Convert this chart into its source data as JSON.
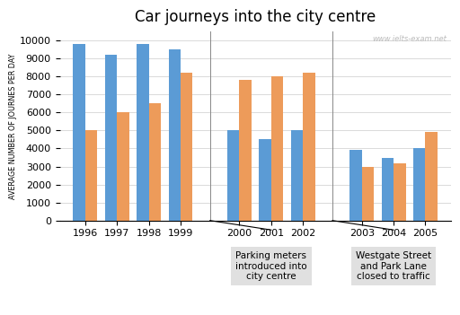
{
  "title": "Car journeys into the city centre",
  "ylabel": "AVERAGE NUMBER OF JOURNES PER DAY",
  "years": [
    1996,
    1997,
    1998,
    1999,
    2000,
    2001,
    2002,
    2003,
    2004,
    2005
  ],
  "residents": [
    9800,
    9200,
    9800,
    9500,
    5000,
    4500,
    5000,
    3900,
    3500,
    4000
  ],
  "non_residents": [
    5000,
    6000,
    6500,
    8200,
    7800,
    8000,
    8200,
    3000,
    3200,
    4900
  ],
  "residents_color": "#5B9BD5",
  "non_residents_color": "#ED9B5A",
  "ylim": [
    0,
    10500
  ],
  "yticks": [
    0,
    1000,
    2000,
    3000,
    4000,
    5000,
    6000,
    7000,
    8000,
    9000,
    10000
  ],
  "annotation1_text": "Parking meters\nintroduced into\ncity centre",
  "annotation2_text": "Westgate Street\nand Park Lane\nclosed to traffic",
  "watermark": "www.ielts-exam.net",
  "bg_color": "#FFFFFF",
  "annotation_bg": "#E0E0E0"
}
